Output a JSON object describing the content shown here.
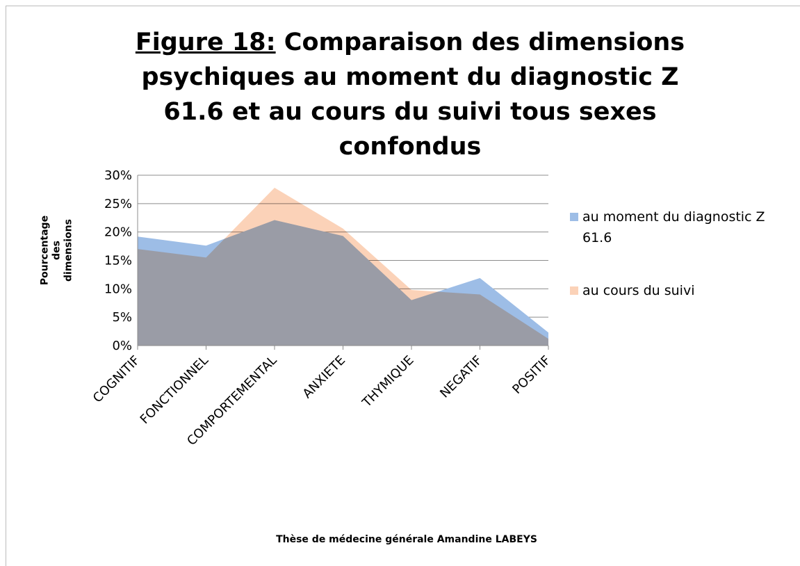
{
  "chart_data": {
    "type": "area",
    "figure_label": "Figure 18:",
    "title": "Comparaison des dimensions psychiques au moment du diagnostic Z 61.6 et au cours du suivi tous sexes confondus",
    "ylabel": "Pourcentage des dimensions",
    "footer": "Thèse de médecine générale Amandine LABEYS",
    "categories": [
      "COGNITIF",
      "FONCTIONNEL",
      "COMPORTEMENTAL",
      "ANXIETE",
      "THYMIQUE",
      "NEGATIF",
      "POSITIF"
    ],
    "series": [
      {
        "name": "au moment du diagnostic Z 61.6",
        "color": "#9dbde6",
        "values": [
          19.2,
          17.6,
          22.1,
          19.3,
          8,
          11.9,
          2.3
        ]
      },
      {
        "name": "au cours du suivi",
        "color": "#fbd2b8",
        "values": [
          17,
          15.5,
          27.8,
          20.6,
          9.8,
          9,
          1.2
        ]
      }
    ],
    "ylim": [
      0,
      30
    ],
    "yticks": [
      {
        "value": 0,
        "label": "0%"
      },
      {
        "value": 5,
        "label": "5%"
      },
      {
        "value": 10,
        "label": "10%"
      },
      {
        "value": 15,
        "label": "15%"
      },
      {
        "value": 20,
        "label": "20%"
      },
      {
        "value": 25,
        "label": "25%"
      },
      {
        "value": 30,
        "label": "30%"
      }
    ],
    "grid": true,
    "legend": "right"
  }
}
